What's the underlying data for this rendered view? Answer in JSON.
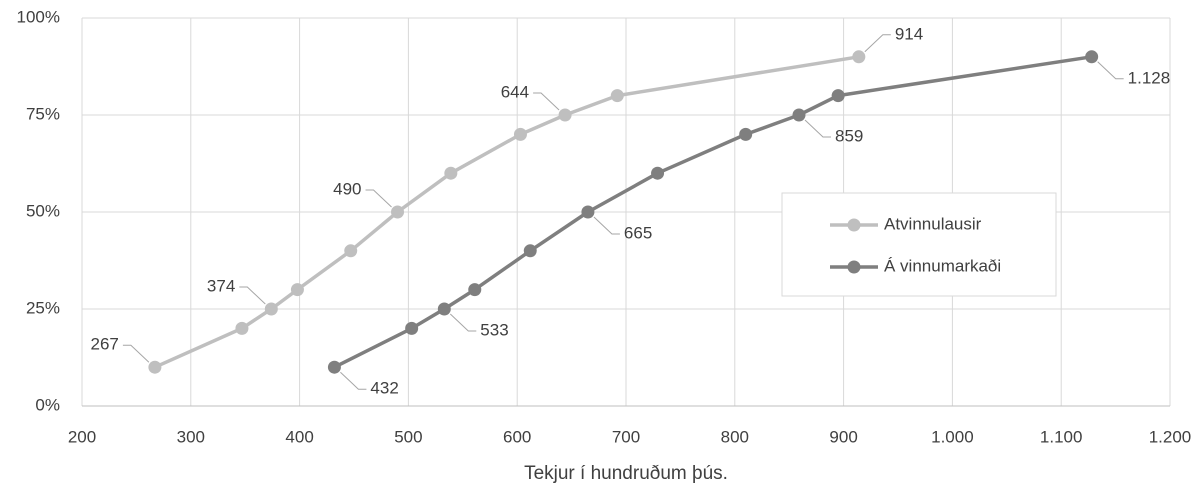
{
  "chart_data": {
    "type": "line",
    "x_label": "Tekjur í hundruðum þús.",
    "series": [
      {
        "name": "Atvinnulausir",
        "color": "#bfbfbf",
        "x": [
          267,
          347,
          374,
          398,
          447,
          490,
          539,
          603,
          644,
          692,
          914
        ],
        "values": [
          10,
          20,
          25,
          30,
          40,
          50,
          60,
          70,
          75,
          80,
          90
        ],
        "value_labels": [
          "267",
          null,
          "374",
          null,
          null,
          "490",
          null,
          null,
          "644",
          null,
          "914"
        ]
      },
      {
        "name": "Á vinnumarkaði",
        "color": "#7f7f7f",
        "x": [
          432,
          503,
          533,
          561,
          612,
          665,
          729,
          810,
          859,
          895,
          1128
        ],
        "values": [
          10,
          20,
          25,
          30,
          40,
          50,
          60,
          70,
          75,
          80,
          90
        ],
        "value_labels": [
          "432",
          null,
          "533",
          null,
          null,
          "665",
          null,
          null,
          "859",
          null,
          "1.128"
        ]
      }
    ],
    "xlim": [
      200,
      1200
    ],
    "xticks": [
      200,
      300,
      400,
      500,
      600,
      700,
      800,
      900,
      {
        "value": 1000,
        "label": "1.000"
      },
      {
        "value": 1100,
        "label": "1.100"
      },
      {
        "value": 1200,
        "label": "1.200"
      }
    ],
    "ylim": [
      0,
      100
    ],
    "yticks": [
      {
        "value": 0,
        "label": "0%"
      },
      {
        "value": 25,
        "label": "25%"
      },
      {
        "value": 50,
        "label": "50%"
      },
      {
        "value": 75,
        "label": "75%"
      },
      {
        "value": 100,
        "label": "100%"
      }
    ],
    "grid": true,
    "legend": "right"
  }
}
